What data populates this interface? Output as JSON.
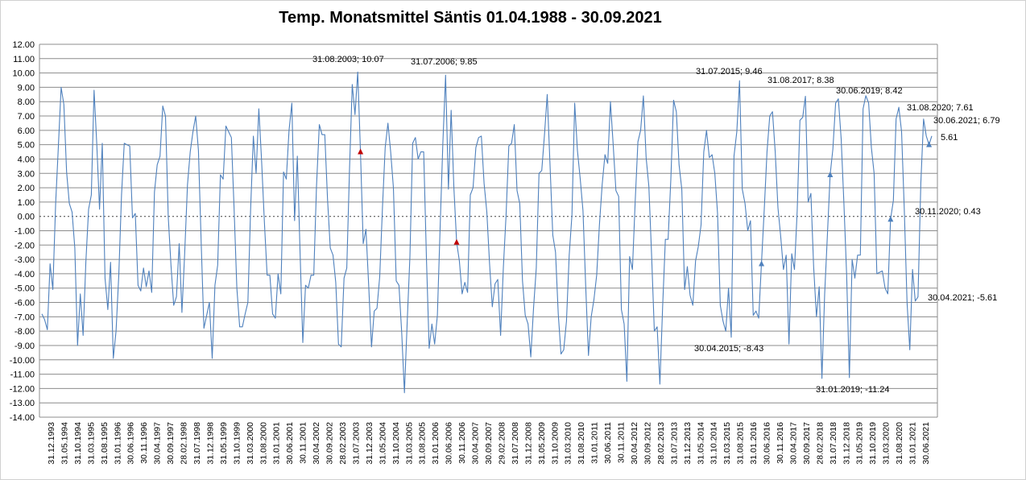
{
  "chart_data": {
    "type": "line",
    "title": "Temp. Monatsmittel Säntis 01.04.1988  - 30.09.2021",
    "xlabel": "",
    "ylabel": "",
    "ylim": [
      -14,
      12
    ],
    "y_tick_step": 1,
    "grid": true,
    "legend": "none",
    "x_tick_labels": [
      "31.12.1993",
      "31.05.1994",
      "31.10.1994",
      "31.03.1995",
      "31.08.1995",
      "31.01.1996",
      "30.06.1996",
      "30.11.1996",
      "30.04.1997",
      "30.09.1997",
      "28.02.1998",
      "31.07.1998",
      "31.12.1998",
      "31.05.1999",
      "31.10.1999",
      "31.03.2000",
      "31.08.2000",
      "31.01.2001",
      "30.06.2001",
      "30.11.2001",
      "30.04.2002",
      "30.09.2002",
      "28.02.2003",
      "31.07.2003",
      "31.12.2003",
      "31.05.2004",
      "31.10.2004",
      "31.03.2005",
      "31.08.2005",
      "31.01.2006",
      "30.06.2006",
      "30.11.2006",
      "30.04.2007",
      "30.09.2007",
      "29.02.2008",
      "31.07.2008",
      "31.12.2008",
      "31.05.2009",
      "31.10.2009",
      "31.03.2010",
      "31.08.2010",
      "31.01.2011",
      "30.06.2011",
      "30.11.2011",
      "30.04.2012",
      "30.09.2012",
      "28.02.2013",
      "31.07.2013",
      "31.12.2013",
      "31.05.2014",
      "31.10.2014",
      "31.03.2015",
      "31.08.2015",
      "31.01.2016",
      "30.06.2016",
      "30.11.2016",
      "30.04.2017",
      "30.09.2017",
      "28.02.2018",
      "31.07.2018",
      "31.12.2018",
      "31.05.2019",
      "31.10.2019",
      "31.03.2020",
      "31.08.2020",
      "31.01.2021",
      "30.06.2021"
    ],
    "series": [
      {
        "color": "#4f81bd",
        "values": [
          -6.8,
          -7.2,
          -7.9,
          -3.3,
          -5.1,
          0.9,
          4.9,
          9.0,
          7.8,
          3.1,
          0.9,
          0.3,
          -2.2,
          -9.0,
          -5.4,
          -8.3,
          -3.2,
          0.5,
          1.5,
          8.8,
          5.0,
          0.5,
          5.1,
          -4.3,
          -6.5,
          -3.2,
          -9.9,
          -8.0,
          -4.1,
          1.5,
          5.1,
          5.0,
          4.9,
          -0.1,
          0.2,
          -4.8,
          -5.2,
          -3.6,
          -4.9,
          -3.8,
          -5.3,
          1.7,
          3.6,
          4.2,
          7.7,
          7.0,
          0.0,
          -3.4,
          -6.2,
          -5.6,
          -1.9,
          -6.7,
          -2.6,
          2.2,
          4.5,
          5.9,
          7.0,
          4.6,
          -1.8,
          -7.8,
          -6.9,
          -6.0,
          -9.9,
          -4.8,
          -3.4,
          2.9,
          2.6,
          6.3,
          5.9,
          5.5,
          0.5,
          -5.0,
          -7.7,
          -7.7,
          -6.8,
          -6.0,
          0.5,
          5.6,
          3.0,
          7.5,
          3.9,
          -0.4,
          -4.1,
          -4.1,
          -6.8,
          -7.1,
          -4.0,
          -5.4,
          3.1,
          2.6,
          6.0,
          7.9,
          -0.3,
          4.2,
          -2.5,
          -8.8,
          -4.8,
          -5.0,
          -4.1,
          -4.1,
          2.1,
          6.4,
          5.7,
          5.7,
          1.2,
          -2.2,
          -2.7,
          -4.6,
          -8.9,
          -9.1,
          -4.3,
          -3.6,
          3.3,
          9.2,
          7.1,
          10.07,
          4.5,
          -1.9,
          -0.9,
          -4.8,
          -9.1,
          -6.6,
          -6.4,
          -4.2,
          0.6,
          4.8,
          6.5,
          4.5,
          2.0,
          -4.5,
          -4.8,
          -8.1,
          -12.3,
          -7.4,
          -2.8,
          5.1,
          5.5,
          4.0,
          4.5,
          4.5,
          -2.9,
          -9.2,
          -7.5,
          -8.9,
          -6.9,
          -0.8,
          5.1,
          9.85,
          1.9,
          7.4,
          2.0,
          -1.8,
          -3.1,
          -5.4,
          -4.6,
          -5.3,
          1.5,
          2.0,
          4.8,
          5.5,
          5.6,
          2.3,
          0.3,
          -3.3,
          -6.3,
          -4.7,
          -4.4,
          -8.3,
          -3.6,
          0.1,
          4.9,
          5.1,
          6.4,
          1.8,
          0.9,
          -4.5,
          -6.9,
          -7.5,
          -9.8,
          -6.4,
          -3.6,
          3.0,
          3.2,
          5.7,
          8.5,
          3.7,
          -1.3,
          -2.5,
          -6.8,
          -9.6,
          -9.3,
          -7.3,
          -2.7,
          0.1,
          7.9,
          4.6,
          2.6,
          0.4,
          -4.9,
          -9.7,
          -7.0,
          -5.8,
          -4.1,
          -0.6,
          2.2,
          4.3,
          3.7,
          8.0,
          5.0,
          1.8,
          1.4,
          -6.5,
          -7.5,
          -11.5,
          -2.8,
          -3.7,
          1.0,
          5.2,
          6.0,
          8.4,
          4.1,
          2.1,
          -2.7,
          -8.0,
          -7.7,
          -11.7,
          -6.3,
          -1.6,
          -1.6,
          2.6,
          8.1,
          7.3,
          3.6,
          1.9,
          -5.1,
          -3.5,
          -5.5,
          -6.2,
          -3.1,
          -2.1,
          -0.6,
          4.5,
          6.0,
          4.1,
          4.3,
          3.0,
          0.2,
          -6.2,
          -7.3,
          -8.0,
          -5.0,
          -8.43,
          4.2,
          5.9,
          9.46,
          1.9,
          0.9,
          -1.0,
          -0.3,
          -6.9,
          -6.6,
          -7.1,
          -3.3,
          0.5,
          4.5,
          7.0,
          7.3,
          4.5,
          0.6,
          -1.4,
          -3.7,
          -2.7,
          -8.9,
          -2.6,
          -3.7,
          0.4,
          6.7,
          6.9,
          8.38,
          1.0,
          1.6,
          -3.5,
          -7.0,
          -4.9,
          -11.3,
          -5.4,
          -1.3,
          2.9,
          4.7,
          7.9,
          8.2,
          5.4,
          0.9,
          -4.1,
          -11.24,
          -3.0,
          -4.3,
          -2.7,
          -2.7,
          7.5,
          8.42,
          7.9,
          4.8,
          3.0,
          -4.0,
          -3.9,
          -3.8,
          -5.0,
          -5.4,
          -0.2,
          1.1,
          6.8,
          7.61,
          5.9,
          0.43,
          -6.0,
          -9.3,
          -3.7,
          -5.9,
          -5.61,
          2.3,
          6.79,
          5.6,
          5.0,
          5.61
        ]
      }
    ],
    "annotations": [
      {
        "text": "31.08.2003; 10.07",
        "marker": "triangle",
        "color": "#c00000"
      },
      {
        "text": "31.07.2006; 9.85",
        "marker": "triangle",
        "color": "#c00000"
      },
      {
        "text": "31.07.2015; 9.46",
        "marker": "triangle",
        "color": "#4f81bd"
      },
      {
        "text": "31.08.2017; 8.38",
        "marker": "triangle",
        "color": "#4f81bd"
      },
      {
        "text": "30.06.2019; 8.42",
        "marker": "triangle",
        "color": "#4f81bd"
      },
      {
        "text": "31.08.2020; 7.61",
        "marker": "triangle",
        "color": "#4f81bd"
      },
      {
        "text": "30.06.2021; 6.79",
        "marker": "triangle",
        "color": "#4f81bd"
      },
      {
        "text": "5.61",
        "marker": "none",
        "color": "#4f81bd"
      },
      {
        "text": "30.11.2020; 0.43",
        "marker": "triangle",
        "color": "#c00000"
      },
      {
        "text": "30.04.2021; -5.61",
        "marker": "none",
        "color": "#4f81bd"
      },
      {
        "text": "30.04.2015; -8.43",
        "marker": "none",
        "color": "#4f81bd"
      },
      {
        "text": "31.01.2019; -11.24",
        "marker": "none",
        "color": "#4f81bd"
      }
    ]
  }
}
